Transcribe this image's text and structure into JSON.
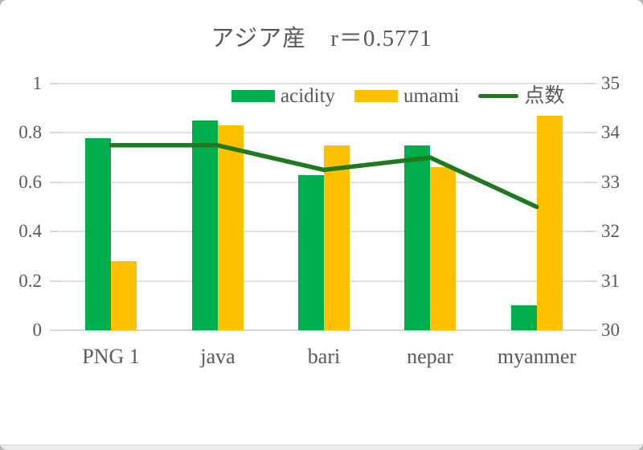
{
  "chart_data": {
    "type": "combo-bar-line",
    "title": "アジア産　r＝0.5771",
    "categories": [
      "PNG 1",
      "java",
      "bari",
      "nepar",
      "myanmer"
    ],
    "series": [
      {
        "name": "acidity",
        "type": "bar",
        "axis": "left",
        "color": "#00AE4E",
        "values": [
          0.78,
          0.85,
          0.63,
          0.75,
          0.1
        ]
      },
      {
        "name": "umami",
        "type": "bar",
        "axis": "left",
        "color": "#FFC000",
        "values": [
          0.28,
          0.83,
          0.75,
          0.66,
          0.87
        ]
      },
      {
        "name": "点数",
        "type": "line",
        "axis": "right",
        "color": "#1F7A1F",
        "values": [
          33.75,
          33.75,
          33.25,
          33.5,
          32.5
        ]
      }
    ],
    "axes": {
      "left": {
        "min": 0,
        "max": 1,
        "labels": [
          "1",
          "0.8",
          "0.6",
          "0.4",
          "0.2",
          "0"
        ]
      },
      "right": {
        "min": 30,
        "max": 35,
        "labels": [
          "35",
          "34",
          "33",
          "32",
          "31",
          "30"
        ]
      }
    },
    "legend": {
      "position": "top",
      "entries": [
        "acidity",
        "umami",
        "点数"
      ]
    },
    "grid": true
  },
  "style": {
    "text_color": "#595959",
    "grid_color": "#E3E3E3",
    "axis_line_color": "#D7D7D7",
    "tick_color": "#D9D9D9",
    "background": "#FFFFFF"
  }
}
